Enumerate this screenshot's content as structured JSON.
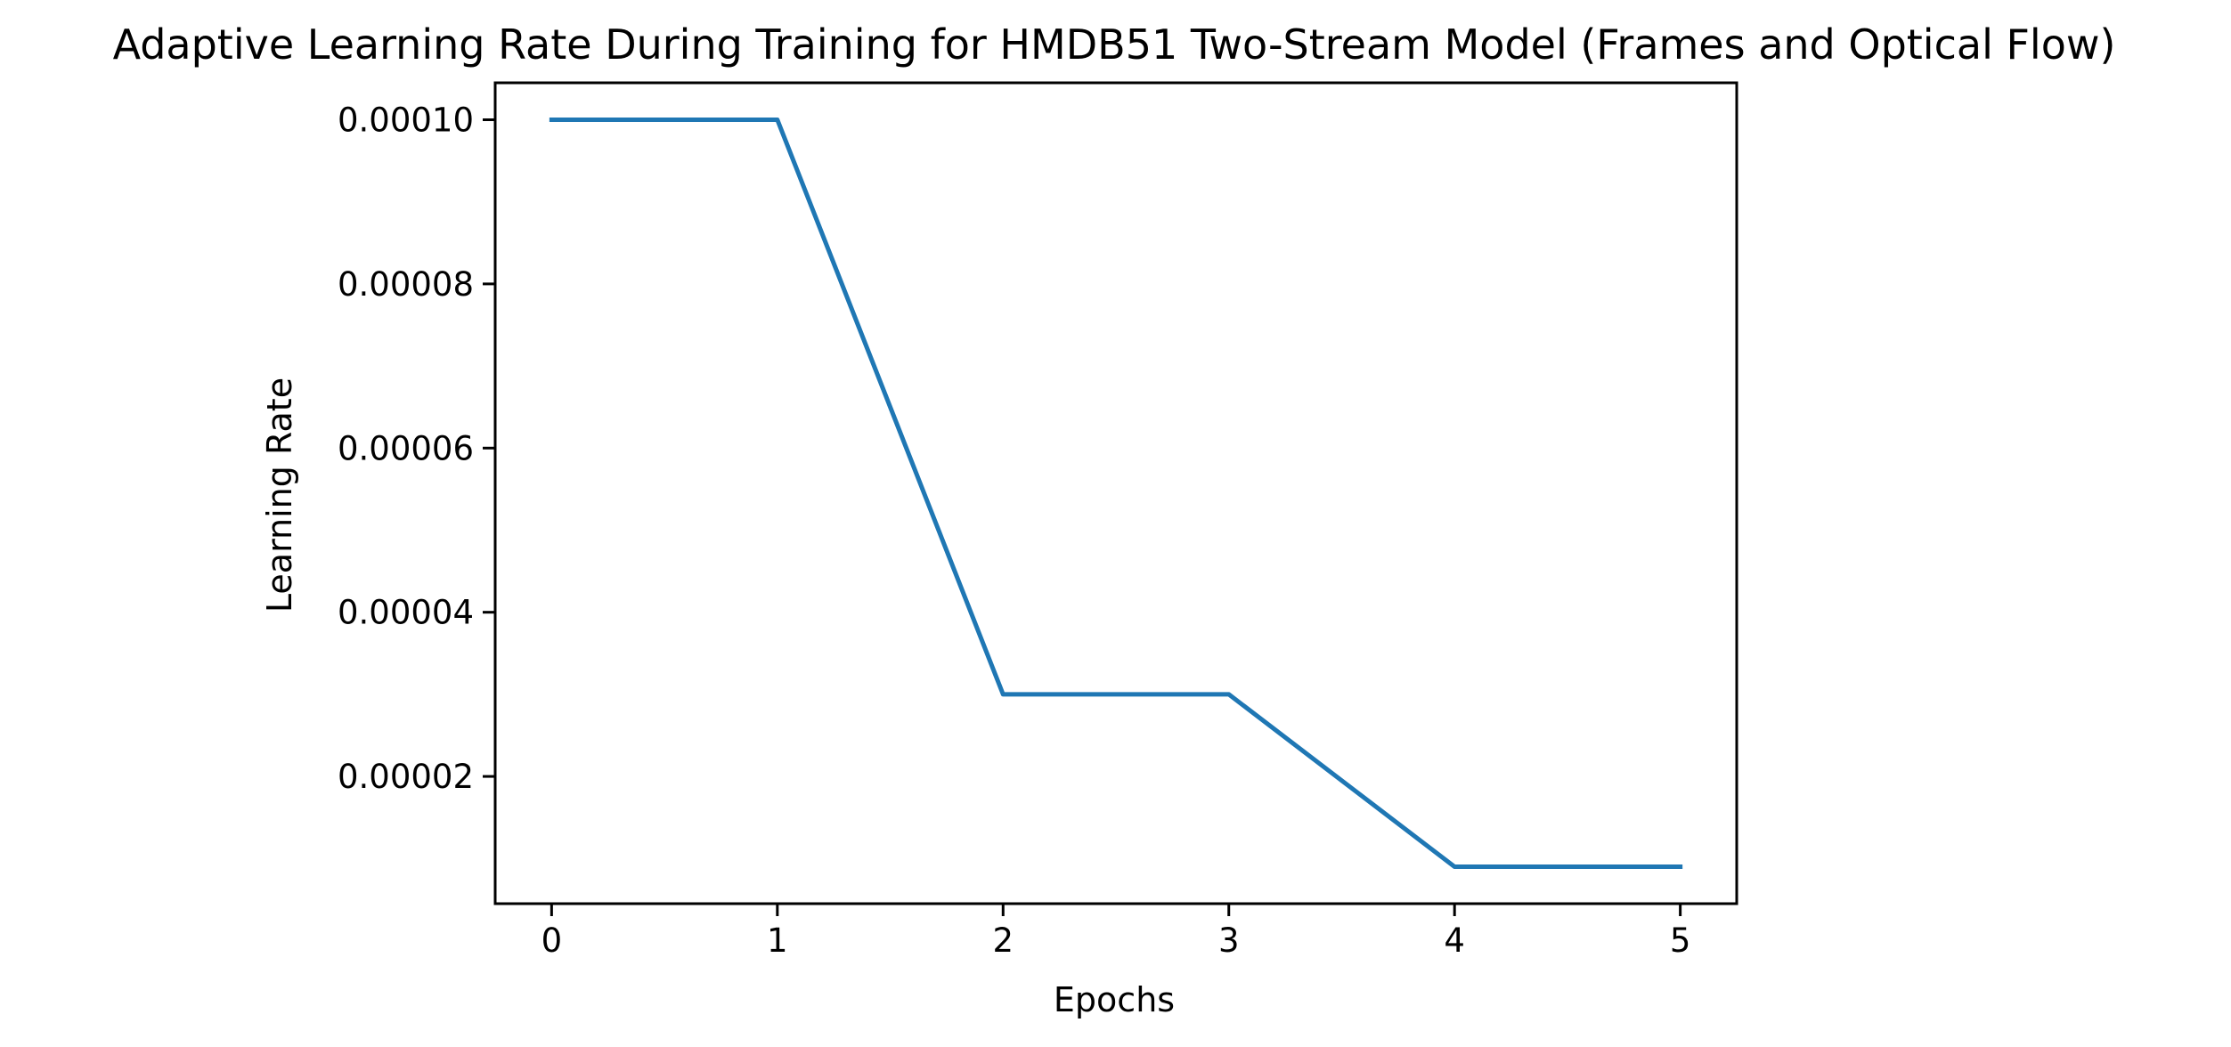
{
  "chart_data": {
    "type": "line",
    "title": "Adaptive Learning Rate During Training for HMDB51 Two-Stream Model (Frames and Optical Flow)",
    "xlabel": "Epochs",
    "ylabel": "Learning Rate",
    "x": [
      0,
      1,
      2,
      3,
      4,
      5
    ],
    "series": [
      {
        "values": [
          0.0001,
          0.0001,
          3e-05,
          3e-05,
          9e-06,
          9e-06
        ],
        "color": "#1f77b4"
      }
    ],
    "xticks": [
      0,
      1,
      2,
      3,
      4,
      5
    ],
    "xtick_labels": [
      "0",
      "1",
      "2",
      "3",
      "4",
      "5"
    ],
    "yticks": [
      2e-05,
      4e-05,
      6e-05,
      8e-05,
      0.0001
    ],
    "ytick_labels": [
      "0.00002",
      "0.00004",
      "0.00006",
      "0.00008",
      "0.00010"
    ],
    "xlim": [
      -0.25,
      5.25
    ],
    "ylim": [
      4.5e-06,
      0.0001045
    ],
    "grid": false,
    "legend": "none"
  }
}
